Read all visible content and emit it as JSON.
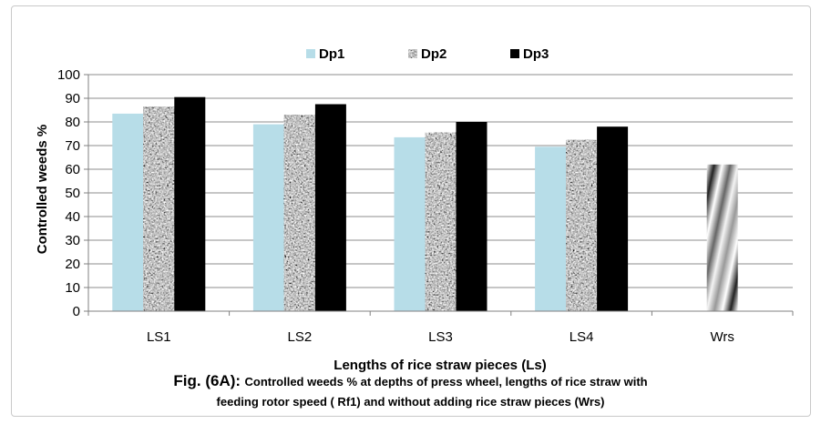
{
  "chart_data": {
    "type": "bar",
    "categories": [
      "LS1",
      "LS2",
      "LS3",
      "LS4",
      "Wrs"
    ],
    "series": [
      {
        "name": "Dp1",
        "values": [
          83.5,
          79,
          73.5,
          69.5,
          null
        ],
        "color": "#b7dde8",
        "pattern": "solid"
      },
      {
        "name": "Dp2",
        "values": [
          86.5,
          83,
          75.5,
          72.5,
          null
        ],
        "color": "#9a9a9a",
        "pattern": "granite"
      },
      {
        "name": "Dp3",
        "values": [
          90.5,
          87.5,
          80,
          78,
          null
        ],
        "color": "#000000",
        "pattern": "solid"
      },
      {
        "name": "",
        "values": [
          null,
          null,
          null,
          null,
          62
        ],
        "color": "#777777",
        "pattern": "diagonal-gradient"
      }
    ],
    "title": "",
    "xlabel": "Lengths of rice straw pieces (Ls)",
    "ylabel": "Controlled weeds %",
    "ylim": [
      0,
      100
    ],
    "yticks": [
      0,
      10,
      20,
      30,
      40,
      50,
      60,
      70,
      80,
      90,
      100
    ],
    "grid": true,
    "legend_position": "top-center"
  },
  "caption": {
    "fig_label": "Fig. (6A):",
    "line1": "Controlled weeds % at depths of  press wheel, lengths of rice straw  with",
    "line2": "feeding rotor speed ( Rf1) and  without adding rice straw pieces (Wrs)"
  }
}
